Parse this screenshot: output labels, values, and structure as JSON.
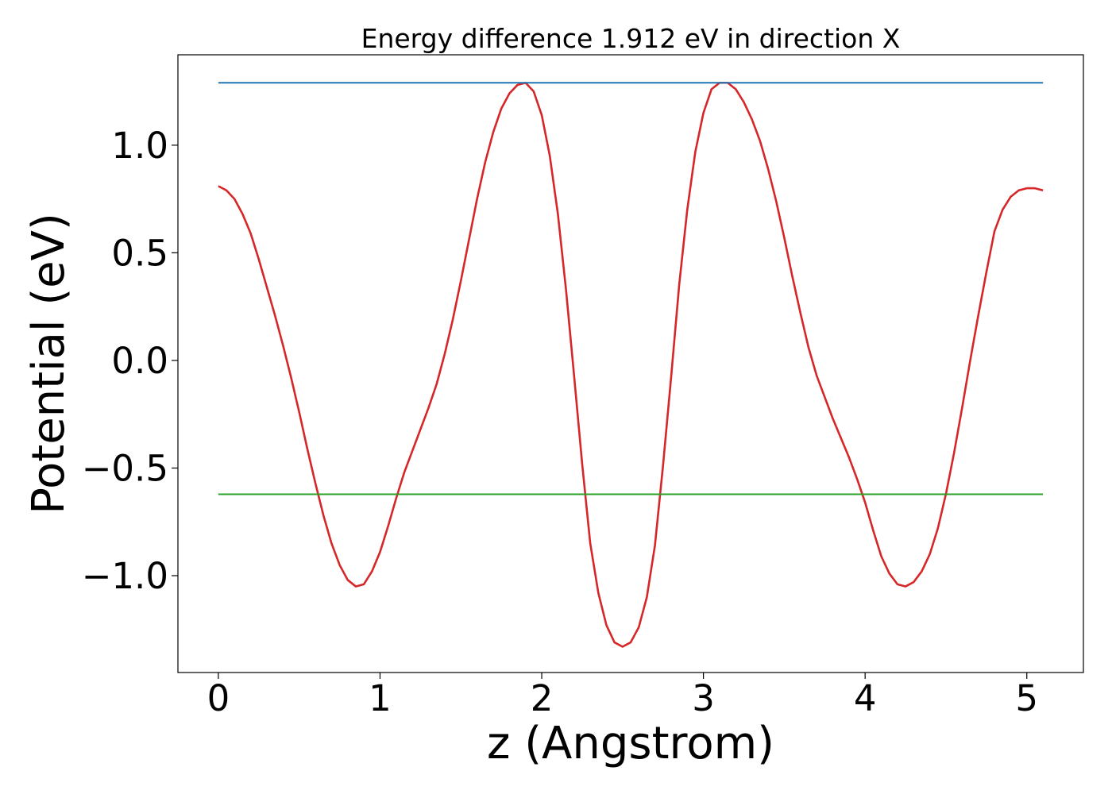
{
  "chart_data": {
    "type": "line",
    "title": "Energy difference 1.912 eV in direction X",
    "xlabel": "z (Angstrom)",
    "ylabel": "Potential (eV)",
    "xlim": [
      -0.25,
      5.35
    ],
    "ylim": [
      -1.45,
      1.42
    ],
    "xticks": [
      0,
      1,
      2,
      3,
      4,
      5
    ],
    "xtick_labels": [
      "0",
      "1",
      "2",
      "3",
      "4",
      "5"
    ],
    "yticks": [
      -1.0,
      -0.5,
      0.0,
      0.5,
      1.0
    ],
    "ytick_labels": [
      "−1.0",
      "−0.5",
      "0.0",
      "0.5",
      "1.0"
    ],
    "grid": false,
    "series": [
      {
        "color": "#d62728",
        "x": [
          0.0,
          0.05,
          0.1,
          0.15,
          0.2,
          0.25,
          0.3,
          0.35,
          0.4,
          0.45,
          0.5,
          0.55,
          0.6,
          0.65,
          0.7,
          0.75,
          0.8,
          0.85,
          0.9,
          0.95,
          1.0,
          1.05,
          1.1,
          1.15,
          1.2,
          1.25,
          1.3,
          1.35,
          1.4,
          1.45,
          1.5,
          1.55,
          1.6,
          1.65,
          1.7,
          1.75,
          1.8,
          1.85,
          1.9,
          1.95,
          2.0,
          2.05,
          2.1,
          2.15,
          2.2,
          2.25,
          2.3,
          2.35,
          2.4,
          2.45,
          2.5,
          2.55,
          2.6,
          2.65,
          2.7,
          2.75,
          2.8,
          2.85,
          2.9,
          2.95,
          3.0,
          3.05,
          3.1,
          3.15,
          3.2,
          3.25,
          3.3,
          3.35,
          3.4,
          3.45,
          3.5,
          3.55,
          3.6,
          3.65,
          3.7,
          3.75,
          3.8,
          3.85,
          3.9,
          3.95,
          4.0,
          4.05,
          4.1,
          4.15,
          4.2,
          4.25,
          4.3,
          4.35,
          4.4,
          4.45,
          4.5,
          4.55,
          4.6,
          4.65,
          4.7,
          4.75,
          4.8,
          4.85,
          4.9,
          4.95,
          5.0,
          5.05,
          5.1
        ],
        "y": [
          0.81,
          0.79,
          0.75,
          0.68,
          0.59,
          0.47,
          0.34,
          0.21,
          0.07,
          -0.08,
          -0.24,
          -0.41,
          -0.57,
          -0.72,
          -0.85,
          -0.95,
          -1.02,
          -1.05,
          -1.04,
          -0.98,
          -0.89,
          -0.77,
          -0.64,
          -0.52,
          -0.42,
          -0.32,
          -0.22,
          -0.11,
          0.03,
          0.19,
          0.37,
          0.56,
          0.75,
          0.92,
          1.06,
          1.17,
          1.24,
          1.28,
          1.29,
          1.25,
          1.14,
          0.95,
          0.68,
          0.33,
          -0.07,
          -0.48,
          -0.85,
          -1.08,
          -1.23,
          -1.31,
          -1.33,
          -1.31,
          -1.24,
          -1.1,
          -0.86,
          -0.49,
          -0.08,
          0.35,
          0.7,
          0.97,
          1.15,
          1.26,
          1.29,
          1.29,
          1.26,
          1.2,
          1.12,
          1.02,
          0.89,
          0.74,
          0.57,
          0.39,
          0.22,
          0.06,
          -0.07,
          -0.17,
          -0.27,
          -0.36,
          -0.45,
          -0.55,
          -0.66,
          -0.79,
          -0.91,
          -0.99,
          -1.04,
          -1.05,
          -1.03,
          -0.98,
          -0.9,
          -0.78,
          -0.62,
          -0.43,
          -0.22,
          0.0,
          0.21,
          0.41,
          0.6,
          0.7,
          0.76,
          0.79,
          0.8,
          0.8,
          0.79
        ]
      },
      {
        "color": "#1f77b4",
        "x": [
          0.0,
          5.1
        ],
        "y": [
          1.29,
          1.29
        ]
      },
      {
        "color": "#2ca02c",
        "x": [
          0.0,
          5.1
        ],
        "y": [
          -0.622,
          -0.622
        ]
      }
    ]
  }
}
